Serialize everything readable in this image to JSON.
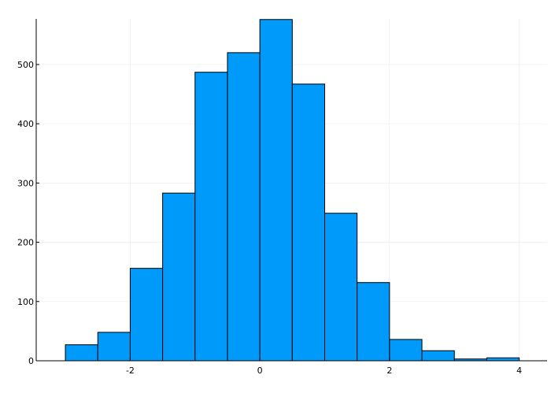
{
  "chart_data": {
    "type": "bar",
    "subtype": "histogram",
    "title": "",
    "xlabel": "",
    "ylabel": "",
    "bin_width": 0.5,
    "bin_edges": [
      -3.0,
      -2.5,
      -2.0,
      -1.5,
      -1.0,
      -0.5,
      0.0,
      0.5,
      1.0,
      1.5,
      2.0,
      2.5,
      3.0,
      3.5,
      4.0
    ],
    "values": [
      27,
      48,
      156,
      283,
      487,
      520,
      576,
      467,
      249,
      132,
      36,
      17,
      3,
      5
    ],
    "xlim": [
      -3.45,
      4.43
    ],
    "ylim": [
      0,
      577
    ],
    "xticks": [
      -2,
      0,
      2,
      4
    ],
    "xtick_labels": [
      "-2",
      "0",
      "2",
      "4"
    ],
    "yticks": [
      0,
      100,
      200,
      300,
      400,
      500
    ],
    "ytick_labels": [
      "0",
      "100",
      "200",
      "300",
      "400",
      "500"
    ],
    "grid": true,
    "legend": "none",
    "colors": {
      "bar_fill": "#009AFA",
      "bar_edge": "#000000",
      "grid": "#EBEBEB"
    }
  }
}
